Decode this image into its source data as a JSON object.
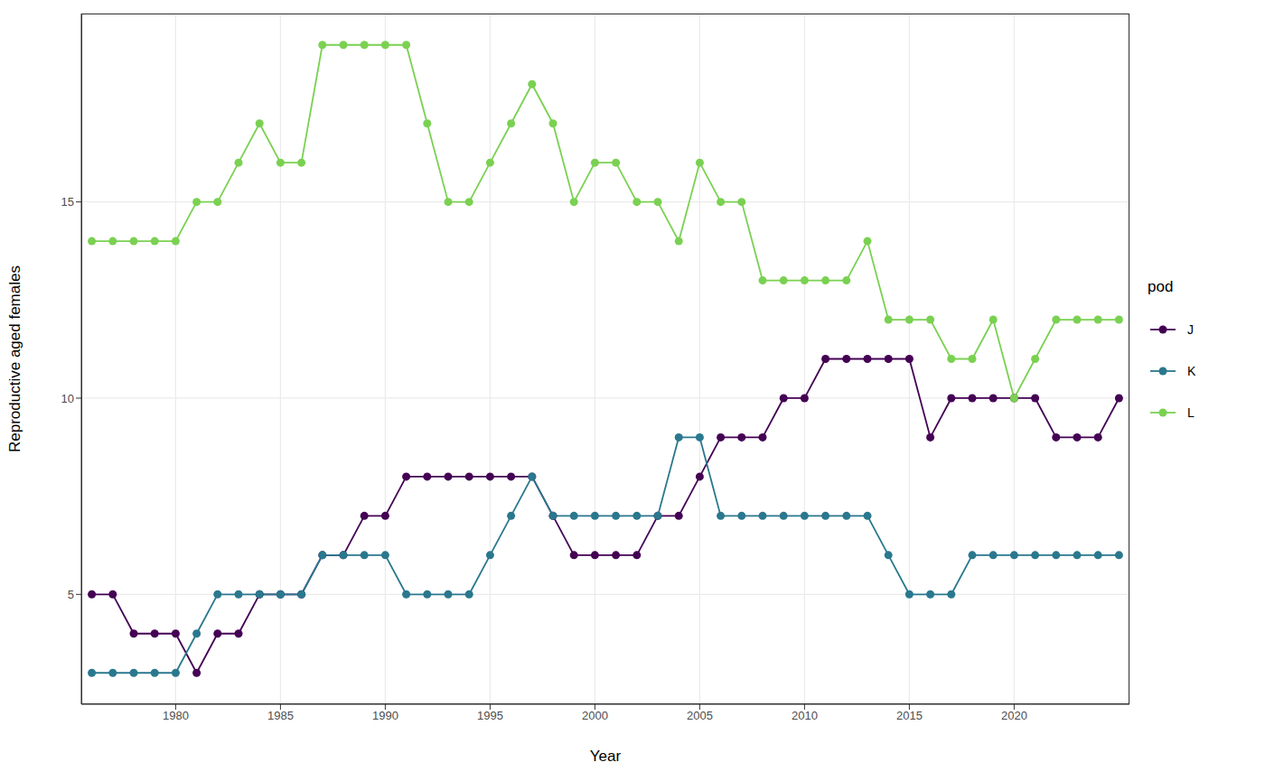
{
  "chart_data": {
    "type": "line",
    "x_label": "Year",
    "y_label": "Reproductive aged females",
    "legend_title": "pod",
    "legend": "right",
    "grid": true,
    "x": [
      1976,
      1977,
      1978,
      1979,
      1980,
      1981,
      1982,
      1983,
      1984,
      1985,
      1986,
      1987,
      1988,
      1989,
      1990,
      1991,
      1992,
      1993,
      1994,
      1995,
      1996,
      1997,
      1998,
      1999,
      2000,
      2001,
      2002,
      2003,
      2004,
      2005,
      2006,
      2007,
      2008,
      2009,
      2010,
      2011,
      2012,
      2013,
      2014,
      2015,
      2016,
      2017,
      2018,
      2019,
      2020,
      2021,
      2022,
      2023,
      2024,
      2025
    ],
    "xlim": [
      1975.5,
      2025.5
    ],
    "xticks": [
      1980,
      1985,
      1990,
      1995,
      2000,
      2005,
      2010,
      2015,
      2020
    ],
    "ylim": [
      2.2,
      19.8
    ],
    "yticks": [
      5,
      10,
      15
    ],
    "series": [
      {
        "name": "J",
        "color": "#440154",
        "marker": "circle",
        "line_style": "solid",
        "values": [
          5,
          5,
          4,
          4,
          4,
          3,
          4,
          4,
          5,
          5,
          5,
          6,
          6,
          7,
          7,
          8,
          8,
          8,
          8,
          8,
          8,
          8,
          7,
          6,
          6,
          6,
          6,
          7,
          7,
          8,
          9,
          9,
          9,
          10,
          10,
          11,
          11,
          11,
          11,
          11,
          9,
          10,
          10,
          10,
          10,
          10,
          9,
          9,
          9,
          10
        ]
      },
      {
        "name": "K",
        "color": "#2A788E",
        "marker": "circle",
        "line_style": "solid",
        "values": [
          3,
          3,
          3,
          3,
          3,
          4,
          5,
          5,
          5,
          5,
          5,
          6,
          6,
          6,
          6,
          5,
          5,
          5,
          5,
          6,
          7,
          8,
          7,
          7,
          7,
          7,
          7,
          7,
          9,
          9,
          7,
          7,
          7,
          7,
          7,
          7,
          7,
          7,
          6,
          5,
          5,
          5,
          6,
          6,
          6,
          6,
          6,
          6,
          6,
          6
        ]
      },
      {
        "name": "L",
        "color": "#7AD151",
        "marker": "circle",
        "line_style": "solid",
        "values": [
          14,
          14,
          14,
          14,
          14,
          15,
          15,
          16,
          17,
          16,
          16,
          19,
          19,
          19,
          19,
          19,
          17,
          15,
          15,
          16,
          17,
          18,
          17,
          15,
          16,
          16,
          15,
          15,
          14,
          16,
          15,
          15,
          13,
          13,
          13,
          13,
          13,
          14,
          12,
          12,
          12,
          11,
          11,
          12,
          10,
          11,
          12,
          12,
          12,
          12
        ]
      }
    ]
  }
}
